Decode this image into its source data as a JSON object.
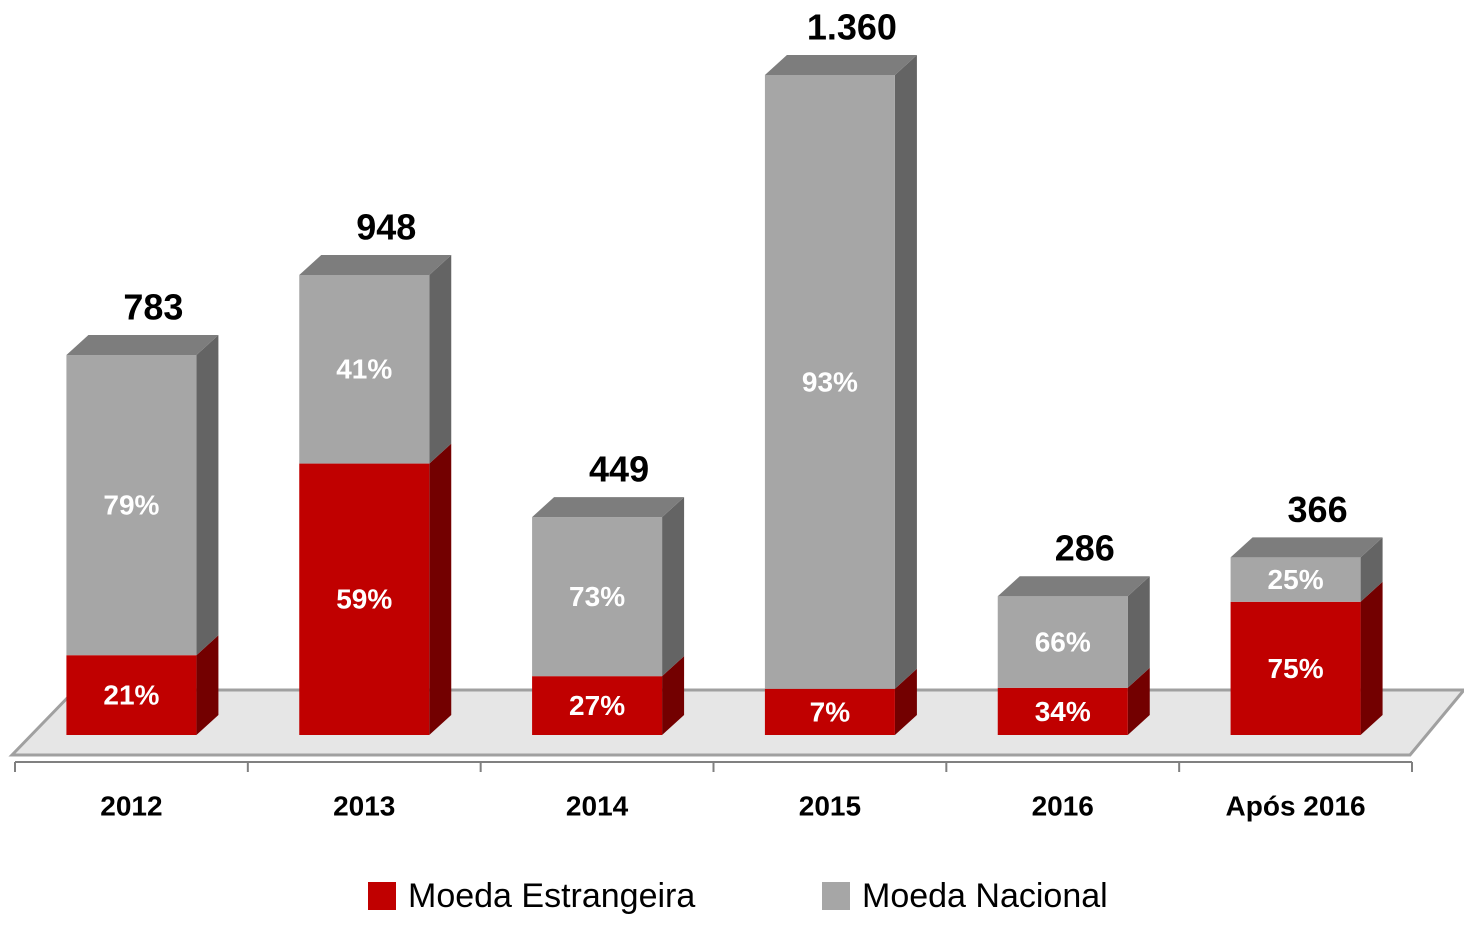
{
  "chart_data": {
    "type": "bar3d_stacked_percent",
    "categories": [
      "2012",
      "2013",
      "2014",
      "2015",
      "2016",
      "Após 2016"
    ],
    "totals": [
      783,
      948,
      449,
      1360,
      286,
      366
    ],
    "totals_value_labels": [
      "783",
      "948",
      "449",
      "1.360",
      "286",
      "366"
    ],
    "series": [
      {
        "name": "Moeda Estrangeira",
        "color": "#c00000",
        "values": [
          21,
          59,
          27,
          7,
          34,
          75
        ],
        "value_labels": [
          "21%",
          "59%",
          "27%",
          "7%",
          "34%",
          "75%"
        ]
      },
      {
        "name": "Moeda Nacional",
        "color": "#a6a6a6",
        "values": [
          79,
          41,
          73,
          93,
          66,
          25
        ],
        "value_labels": [
          "79%",
          "41%",
          "73%",
          "93%",
          "66%",
          "25%"
        ]
      }
    ],
    "legend": "bottom"
  }
}
